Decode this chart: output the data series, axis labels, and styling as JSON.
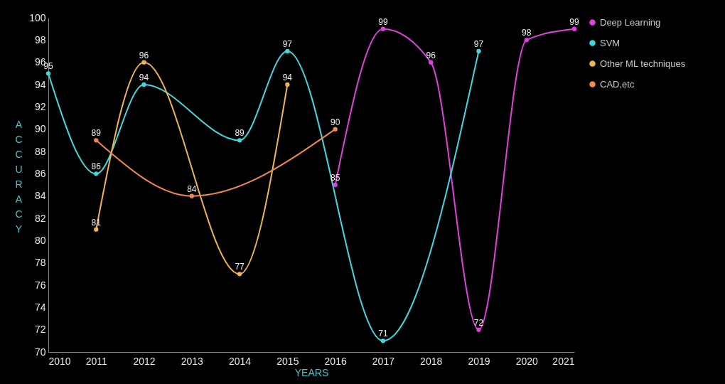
{
  "chart_data": {
    "type": "line",
    "xlabel": "YEARS",
    "ylabel": "ACCURACY",
    "xlim": [
      2010,
      2021
    ],
    "xticks": [
      2010,
      2011,
      2012,
      2013,
      2014,
      2015,
      2016,
      2017,
      2018,
      2019,
      2020,
      2021
    ],
    "ylim": [
      70,
      100
    ],
    "yticks": [
      70,
      72,
      74,
      76,
      78,
      80,
      82,
      84,
      86,
      88,
      90,
      92,
      94,
      96,
      98,
      100
    ],
    "grid": false,
    "legend": "right",
    "marker": "circle",
    "line_style": "solid",
    "data_labels": true,
    "series": [
      {
        "name": "Deep Learning",
        "color": "#e040e0",
        "x": [
          2016,
          2017,
          2018,
          2019,
          2020,
          2021
        ],
        "values": [
          85,
          99,
          96,
          72,
          98,
          99
        ]
      },
      {
        "name": "SVM",
        "color": "#40d8e0",
        "x": [
          2010,
          2011,
          2012,
          2014,
          2015,
          2017,
          2019
        ],
        "values": [
          95,
          86,
          94,
          89,
          97,
          71,
          97
        ]
      },
      {
        "name": "Other ML techniques",
        "color": "#f0b450",
        "x": [
          2011,
          2012,
          2014,
          2015
        ],
        "values": [
          81,
          96,
          77,
          94
        ]
      },
      {
        "name": "CAD,etc",
        "color": "#f08a4c",
        "x": [
          2011,
          2013,
          2016
        ],
        "values": [
          89,
          84,
          90
        ]
      }
    ]
  }
}
